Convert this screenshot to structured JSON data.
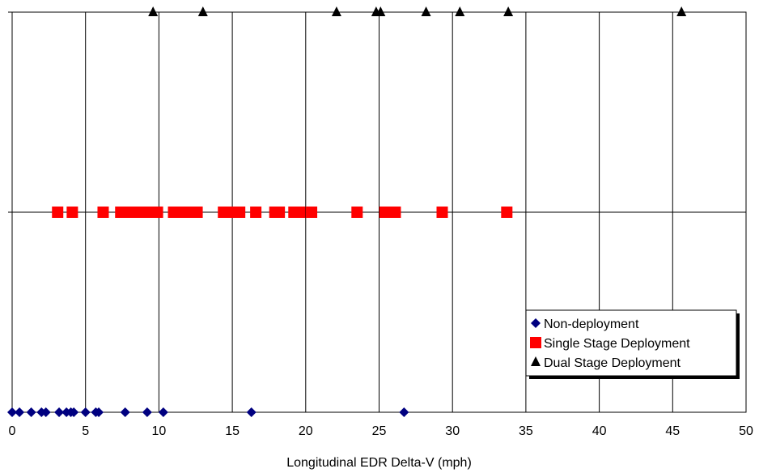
{
  "chart_data": {
    "type": "scatter",
    "title": "",
    "xlabel": "Longitudinal EDR Delta-V (mph)",
    "ylabel": "",
    "xlim": [
      0,
      50
    ],
    "xticks": [
      0,
      5,
      10,
      15,
      20,
      25,
      30,
      35,
      40,
      45,
      50
    ],
    "ylim": [
      0,
      2
    ],
    "grid": true,
    "legend_position": "bottom-right",
    "series": [
      {
        "name": "Non-deployment",
        "marker": "diamond",
        "color": "#000080",
        "y": 0,
        "x": [
          0.0,
          0.5,
          1.3,
          2.0,
          2.3,
          3.2,
          3.7,
          4.0,
          4.2,
          5.0,
          5.7,
          5.9,
          7.7,
          9.2,
          10.3,
          16.3,
          26.7
        ]
      },
      {
        "name": "Single Stage Deployment",
        "marker": "square",
        "color": "#ff0000",
        "y": 1,
        "x": [
          3.1,
          4.1,
          6.2,
          7.4,
          7.9,
          8.3,
          8.6,
          8.9,
          9.2,
          9.9,
          11.0,
          11.4,
          11.8,
          12.2,
          12.6,
          14.4,
          14.9,
          15.5,
          16.6,
          17.9,
          18.2,
          19.2,
          19.6,
          20.4,
          23.5,
          25.4,
          25.8,
          26.1,
          29.3,
          33.7
        ]
      },
      {
        "name": "Dual Stage Deployment",
        "marker": "triangle",
        "color": "#000000",
        "y": 2,
        "x": [
          9.6,
          13.0,
          22.1,
          24.8,
          25.1,
          28.2,
          30.5,
          33.8,
          45.6
        ]
      }
    ]
  }
}
